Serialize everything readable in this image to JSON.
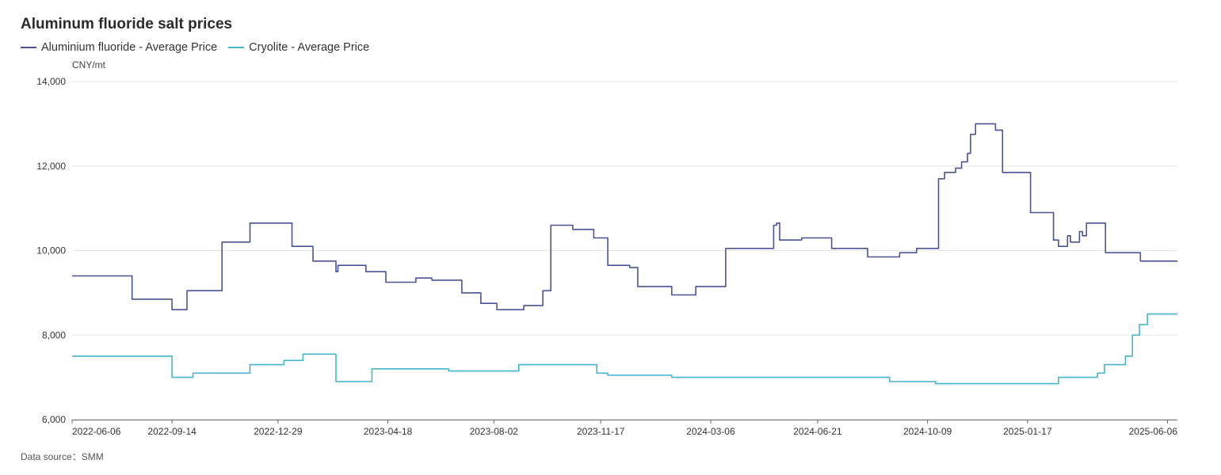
{
  "title": "Aluminum fluoride salt prices",
  "source": "Data source：SMM",
  "chart_data": {
    "type": "line",
    "unit": "CNY/mt",
    "xlim": [
      "2022-06-06",
      "2025-06-16"
    ],
    "ylim": [
      6000,
      14000
    ],
    "y_ticks": [
      6000,
      8000,
      10000,
      12000,
      14000
    ],
    "y_tick_labels": [
      "6,000",
      "8,000",
      "10,000",
      "12,000",
      "14,000"
    ],
    "x_ticks": [
      "2022-06-06",
      "2022-09-14",
      "2022-12-29",
      "2023-04-18",
      "2023-08-02",
      "2023-11-17",
      "2024-03-06",
      "2024-06-21",
      "2024-10-09",
      "2025-01-17",
      "2025-06-06"
    ],
    "grid": true,
    "legend": "top-left",
    "series": [
      {
        "name": "Aluminium fluoride - Average Price",
        "color": "#4a5396",
        "step": true,
        "points": [
          [
            "2022-06-06",
            9400
          ],
          [
            "2022-08-05",
            8850
          ],
          [
            "2022-09-14",
            8600
          ],
          [
            "2022-09-29",
            9050
          ],
          [
            "2022-11-03",
            10200
          ],
          [
            "2022-12-01",
            10650
          ],
          [
            "2023-01-12",
            10100
          ],
          [
            "2023-02-02",
            9750
          ],
          [
            "2023-02-25",
            9500
          ],
          [
            "2023-02-27",
            9650
          ],
          [
            "2023-03-27",
            9500
          ],
          [
            "2023-04-16",
            9250
          ],
          [
            "2023-05-16",
            9350
          ],
          [
            "2023-06-01",
            9300
          ],
          [
            "2023-07-01",
            9000
          ],
          [
            "2023-07-20",
            8750
          ],
          [
            "2023-08-05",
            8600
          ],
          [
            "2023-09-01",
            8700
          ],
          [
            "2023-09-20",
            9050
          ],
          [
            "2023-09-28",
            10600
          ],
          [
            "2023-10-20",
            10500
          ],
          [
            "2023-11-10",
            10300
          ],
          [
            "2023-11-24",
            9650
          ],
          [
            "2023-12-16",
            9600
          ],
          [
            "2023-12-24",
            9150
          ],
          [
            "2024-01-27",
            8950
          ],
          [
            "2024-02-20",
            9150
          ],
          [
            "2024-03-21",
            10050
          ],
          [
            "2024-05-08",
            10600
          ],
          [
            "2024-05-11",
            10650
          ],
          [
            "2024-05-14",
            10250
          ],
          [
            "2024-06-05",
            10300
          ],
          [
            "2024-07-05",
            10050
          ],
          [
            "2024-08-10",
            9850
          ],
          [
            "2024-09-11",
            9950
          ],
          [
            "2024-09-28",
            10050
          ],
          [
            "2024-10-20",
            11700
          ],
          [
            "2024-10-26",
            11850
          ],
          [
            "2024-11-06",
            11950
          ],
          [
            "2024-11-12",
            12100
          ],
          [
            "2024-11-18",
            12300
          ],
          [
            "2024-11-21",
            12750
          ],
          [
            "2024-11-26",
            13000
          ],
          [
            "2024-12-16",
            12850
          ],
          [
            "2024-12-23",
            11850
          ],
          [
            "2025-01-20",
            10900
          ],
          [
            "2025-02-12",
            10250
          ],
          [
            "2025-02-17",
            10100
          ],
          [
            "2025-02-26",
            10350
          ],
          [
            "2025-03-01",
            10200
          ],
          [
            "2025-03-10",
            10450
          ],
          [
            "2025-03-13",
            10350
          ],
          [
            "2025-03-17",
            10650
          ],
          [
            "2025-04-05",
            9950
          ],
          [
            "2025-05-10",
            9750
          ],
          [
            "2025-06-16",
            9750
          ]
        ]
      },
      {
        "name": "Cryolite - Average Price",
        "color": "#46b4c8",
        "step": true,
        "points": [
          [
            "2022-06-06",
            7500
          ],
          [
            "2022-09-14",
            7000
          ],
          [
            "2022-10-05",
            7100
          ],
          [
            "2022-12-01",
            7300
          ],
          [
            "2023-01-04",
            7400
          ],
          [
            "2023-01-23",
            7550
          ],
          [
            "2023-02-25",
            6900
          ],
          [
            "2023-04-02",
            7200
          ],
          [
            "2023-06-18",
            7150
          ],
          [
            "2023-08-27",
            7300
          ],
          [
            "2023-11-13",
            7100
          ],
          [
            "2023-11-24",
            7050
          ],
          [
            "2024-01-27",
            7000
          ],
          [
            "2024-09-01",
            6900
          ],
          [
            "2024-10-17",
            6850
          ],
          [
            "2025-02-17",
            7000
          ],
          [
            "2025-03-28",
            7100
          ],
          [
            "2025-04-04",
            7300
          ],
          [
            "2025-04-25",
            7500
          ],
          [
            "2025-05-02",
            8000
          ],
          [
            "2025-05-09",
            8250
          ],
          [
            "2025-05-17",
            8500
          ],
          [
            "2025-06-16",
            8500
          ]
        ]
      }
    ]
  }
}
